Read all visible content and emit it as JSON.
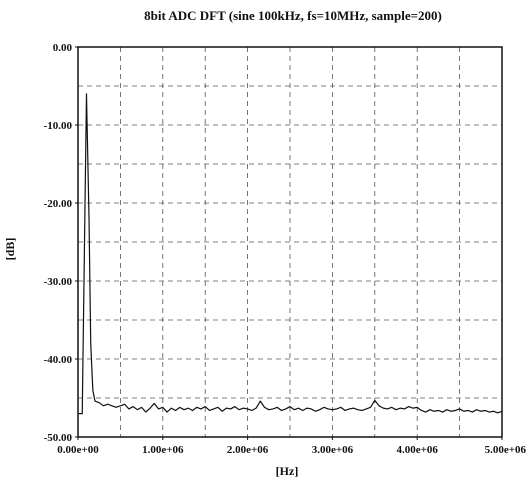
{
  "chart_data": {
    "type": "line",
    "title": "8bit ADC DFT (sine 100kHz, fs=10MHz, sample=200)",
    "xlabel": "[Hz]",
    "ylabel": "[dB]",
    "xlim": [
      0,
      5000000
    ],
    "ylim": [
      -50,
      0
    ],
    "x_tick_values": [
      0,
      1000000,
      2000000,
      3000000,
      4000000,
      5000000
    ],
    "x_tick_labels": [
      "0.00e+00",
      "1.00e+06",
      "2.00e+06",
      "3.00e+06",
      "4.00e+06",
      "5.00e+06"
    ],
    "y_tick_values": [
      0,
      -10,
      -20,
      -30,
      -40,
      -50
    ],
    "y_tick_labels": [
      "0.00",
      "-10.00",
      "-20.00",
      "-30.00",
      "-40.00",
      "-50.00"
    ],
    "grid": true,
    "grid_style": "dashed",
    "legend": false,
    "series": [
      {
        "color": "#111111",
        "x": [
          0,
          50000,
          100000,
          130000,
          150000,
          175000,
          200000,
          250000,
          300000,
          350000,
          400000,
          450000,
          500000,
          550000,
          600000,
          650000,
          700000,
          750000,
          800000,
          850000,
          900000,
          950000,
          1000000,
          1050000,
          1100000,
          1150000,
          1200000,
          1250000,
          1300000,
          1350000,
          1400000,
          1450000,
          1500000,
          1550000,
          1600000,
          1650000,
          1700000,
          1750000,
          1800000,
          1850000,
          1900000,
          1950000,
          2000000,
          2050000,
          2100000,
          2150000,
          2200000,
          2250000,
          2300000,
          2350000,
          2400000,
          2450000,
          2500000,
          2550000,
          2600000,
          2650000,
          2700000,
          2750000,
          2800000,
          2850000,
          2900000,
          2950000,
          3000000,
          3050000,
          3100000,
          3150000,
          3200000,
          3250000,
          3300000,
          3350000,
          3400000,
          3450000,
          3500000,
          3550000,
          3600000,
          3650000,
          3700000,
          3750000,
          3800000,
          3850000,
          3900000,
          3950000,
          4000000,
          4050000,
          4100000,
          4150000,
          4200000,
          4250000,
          4300000,
          4350000,
          4400000,
          4450000,
          4500000,
          4550000,
          4600000,
          4650000,
          4700000,
          4750000,
          4800000,
          4850000,
          4900000,
          4950000,
          5000000
        ],
        "y": [
          -47,
          -47,
          -6,
          -22,
          -38,
          -44,
          -45.4,
          -45.6,
          -46.0,
          -45.8,
          -46.0,
          -46.2,
          -46.0,
          -45.8,
          -46.4,
          -46.1,
          -46.5,
          -46.2,
          -46.8,
          -46.3,
          -45.7,
          -46.4,
          -46.2,
          -46.8,
          -46.3,
          -46.6,
          -46.2,
          -46.5,
          -46.3,
          -46.6,
          -46.2,
          -46.4,
          -46.1,
          -46.6,
          -46.4,
          -46.2,
          -46.7,
          -46.3,
          -46.4,
          -46.1,
          -46.5,
          -46.3,
          -46.4,
          -46.6,
          -46.3,
          -45.4,
          -46.2,
          -46.5,
          -46.4,
          -46.2,
          -46.6,
          -46.4,
          -46.1,
          -46.5,
          -46.3,
          -46.6,
          -46.3,
          -46.4,
          -46.7,
          -46.5,
          -46.2,
          -46.4,
          -46.5,
          -46.4,
          -46.2,
          -46.6,
          -46.4,
          -46.3,
          -46.5,
          -46.6,
          -46.4,
          -46.2,
          -45.3,
          -46.0,
          -46.3,
          -46.4,
          -46.2,
          -46.5,
          -46.3,
          -46.4,
          -46.1,
          -46.3,
          -46.2,
          -46.6,
          -46.8,
          -46.5,
          -46.7,
          -46.6,
          -46.8,
          -46.5,
          -46.7,
          -46.6,
          -46.4,
          -46.7,
          -46.6,
          -46.8,
          -46.5,
          -46.7,
          -46.6,
          -46.8,
          -46.7,
          -46.9,
          -46.7
        ]
      }
    ]
  }
}
